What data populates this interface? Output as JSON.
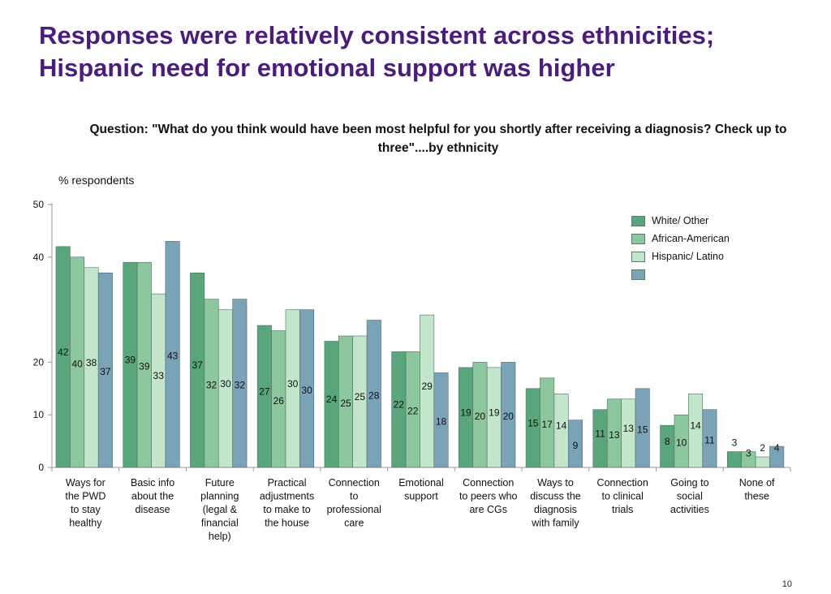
{
  "title_lines": [
    "Responses were relatively consistent across ethnicities;",
    "Hispanic need for emotional support was higher"
  ],
  "page_number": "10",
  "chart_data": {
    "type": "bar",
    "title": "Question: \"What do you think would have been most helpful for you shortly after receiving a diagnosis? Check up to three\"....by ethnicity",
    "ylabel": "% respondents",
    "xlabel": "",
    "ylim": [
      0,
      50
    ],
    "yticks": [
      0,
      10,
      20,
      40,
      50
    ],
    "grid": false,
    "legend_position": "top-right",
    "categories": [
      [
        "Ways for",
        "the PWD",
        "to stay",
        "healthy"
      ],
      [
        "Basic info",
        "about the",
        "disease"
      ],
      [
        "Future",
        "planning",
        "(legal &",
        "financial",
        "help)"
      ],
      [
        "Practical",
        "adjustments",
        "to make to",
        "the house"
      ],
      [
        "Connection",
        "to",
        "professional",
        "care"
      ],
      [
        "Emotional",
        "support"
      ],
      [
        "Connection",
        "to peers who",
        "are CGs"
      ],
      [
        "Ways to",
        "discuss the",
        "diagnosis",
        "with family"
      ],
      [
        "Connection",
        "to clinical",
        "trials"
      ],
      [
        "Going to",
        "social",
        "activities"
      ],
      [
        "None of",
        "these"
      ]
    ],
    "series": [
      {
        "name": "White/ Other",
        "color": "#5aa67c",
        "values": [
          42,
          39,
          37,
          27,
          24,
          22,
          19,
          15,
          11,
          8,
          3
        ]
      },
      {
        "name": "African-American",
        "color": "#8dc79e",
        "values": [
          40,
          39,
          32,
          26,
          25,
          22,
          20,
          17,
          13,
          10,
          3
        ]
      },
      {
        "name": "Hispanic/ Latino",
        "color": "#c3e5cb",
        "values": [
          38,
          33,
          30,
          30,
          25,
          29,
          19,
          14,
          13,
          14,
          2
        ]
      },
      {
        "name": "",
        "color": "#7aa3b8",
        "values": [
          37,
          43,
          32,
          30,
          28,
          18,
          20,
          9,
          15,
          11,
          4
        ]
      }
    ]
  }
}
